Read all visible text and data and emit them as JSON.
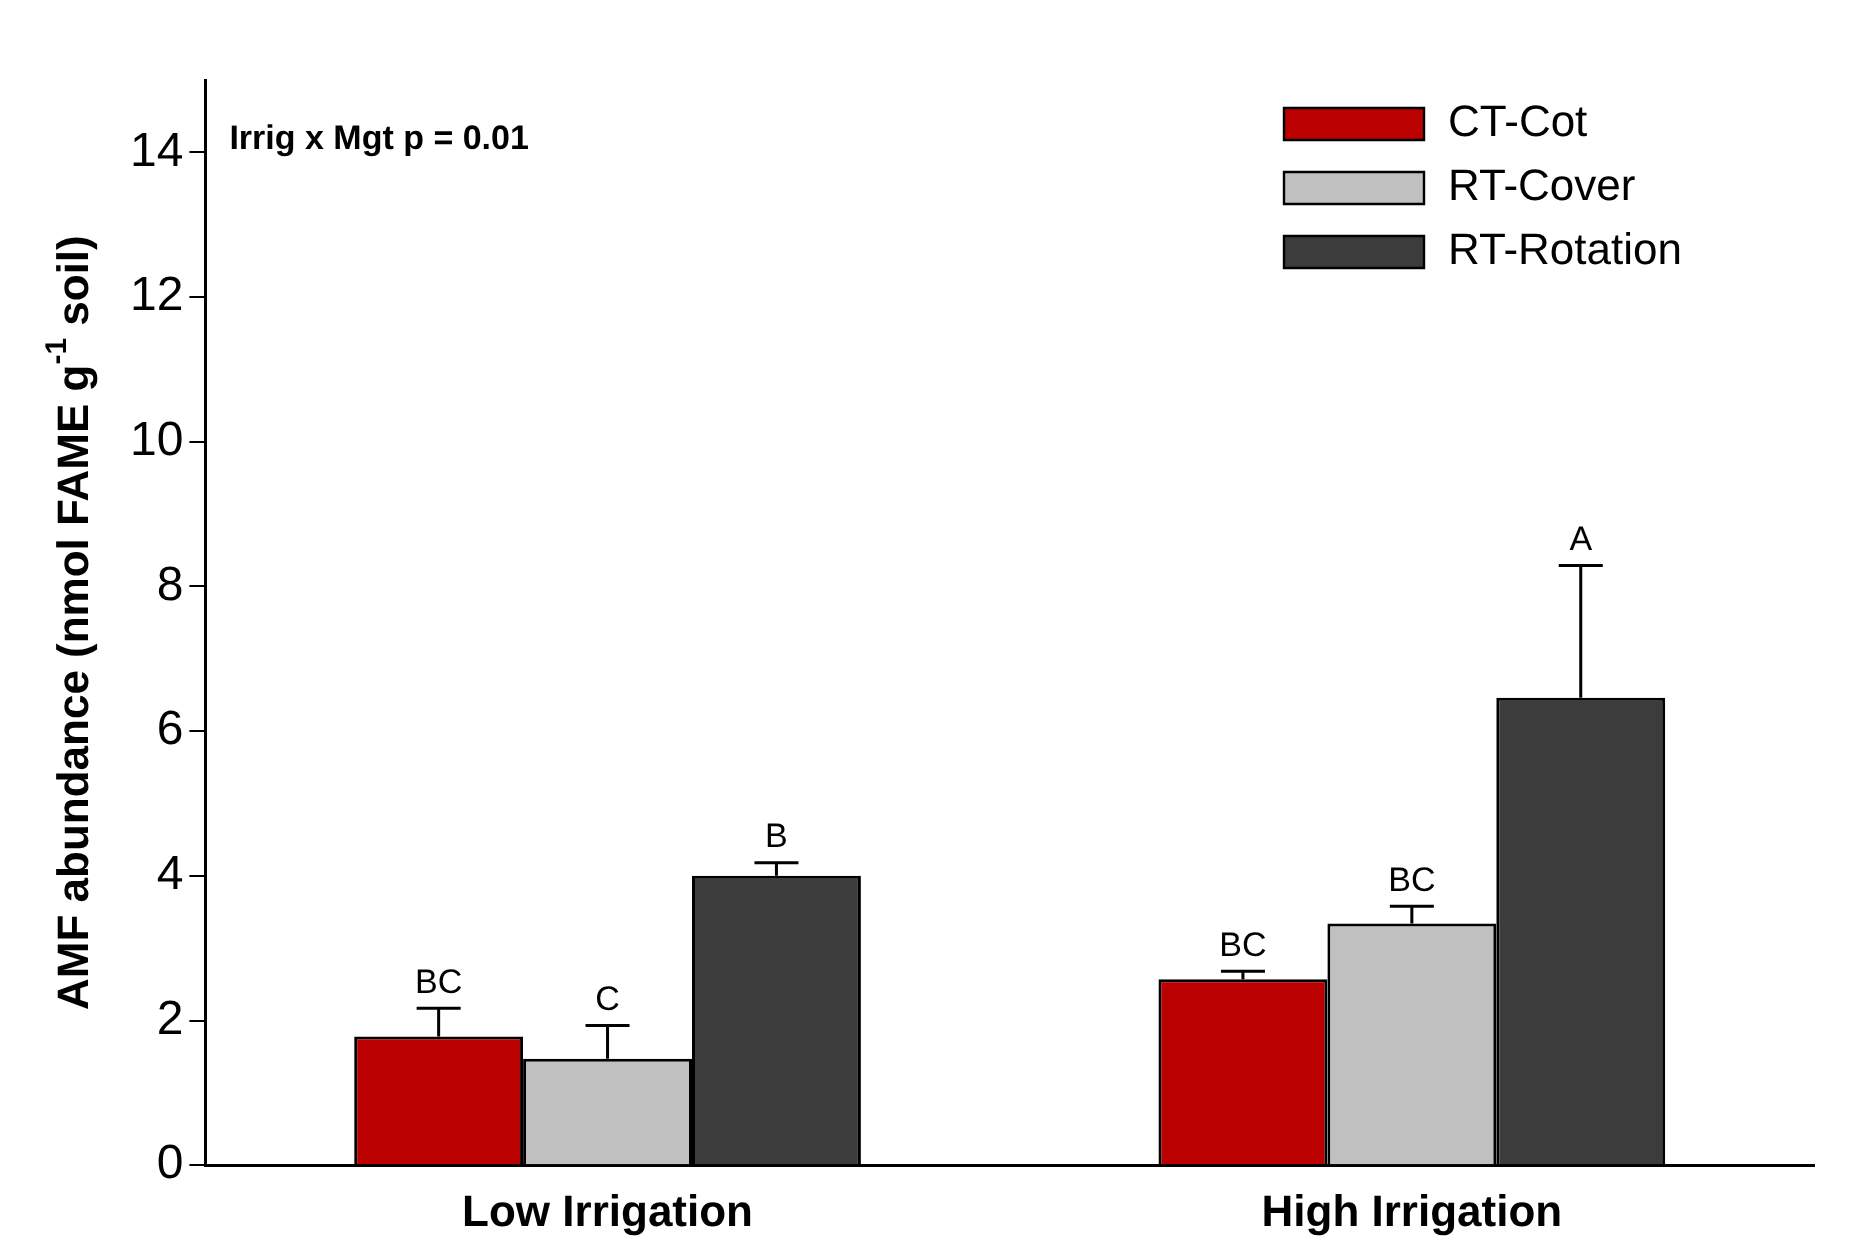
{
  "chart_data": {
    "type": "bar",
    "ylabel": "AMF abundance (nmol FAME g$^{-1}$ soil)",
    "categories": [
      "Low Irrigation",
      "High Irrigation"
    ],
    "series": [
      {
        "name": "CT-Cot",
        "color": "#bb0000",
        "values": [
          1.78,
          2.57
        ],
        "errors": [
          [
            1.78,
            2.17
          ],
          [
            2.57,
            2.68
          ]
        ]
      },
      {
        "name": "RT-Cover",
        "color": "#c0c0c0",
        "values": [
          1.47,
          3.34
        ],
        "errors": [
          [
            1.47,
            1.93
          ],
          [
            3.34,
            3.58
          ]
        ]
      },
      {
        "name": "RT-Rotation",
        "color": "#3c3c3c",
        "values": [
          4.0,
          6.46
        ],
        "errors": [
          [
            4.0,
            4.18
          ],
          [
            6.46,
            8.29
          ]
        ]
      }
    ],
    "ylim": [
      0,
      15
    ],
    "yticks": [
      0,
      2,
      4,
      6,
      8,
      10,
      12,
      14
    ],
    "grid": false,
    "legend": "top right",
    "annotations": [
      "Irrig x Mgt p = 0.01",
      "BC",
      "C",
      "B",
      "BC",
      "BC",
      "A"
    ]
  }
}
